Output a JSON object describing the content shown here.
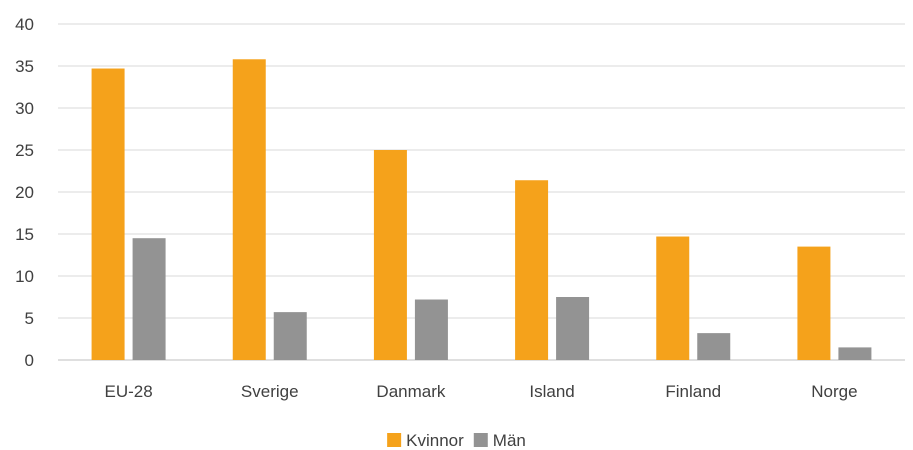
{
  "chart_data": {
    "type": "bar",
    "title": "",
    "xlabel": "",
    "ylabel": "",
    "categories": [
      "EU-28",
      "Sverige",
      "Danmark",
      "Island",
      "Finland",
      "Norge"
    ],
    "series": [
      {
        "name": "Kvinnor",
        "color": "#F5A21B",
        "values": [
          34.7,
          35.8,
          25.0,
          21.4,
          14.7,
          13.5
        ]
      },
      {
        "name": "Män",
        "color": "#939393",
        "values": [
          14.5,
          5.7,
          7.2,
          7.5,
          3.2,
          1.5
        ]
      }
    ],
    "ylim": [
      0,
      40
    ],
    "yticks": [
      0,
      5,
      10,
      15,
      20,
      25,
      30,
      35,
      40
    ],
    "grid": true,
    "legend_position": "bottom"
  }
}
